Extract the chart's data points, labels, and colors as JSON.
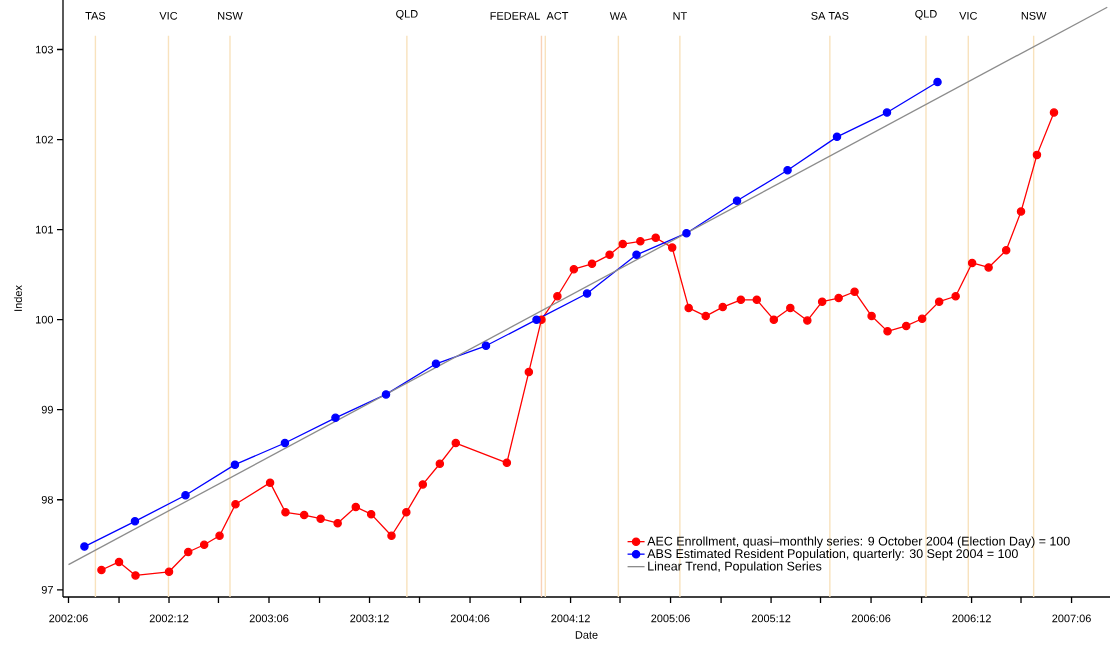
{
  "chart_data": {
    "type": "line",
    "xlabel": "Date",
    "ylabel": "Index",
    "marker": "circle",
    "legend": "bottom right",
    "grid": false,
    "xlim": [
      "2002-05-22",
      "2007-08-10"
    ],
    "ylim": [
      96.92,
      103.55
    ],
    "xticks": [
      {
        "value": "2002-06",
        "label": "2002:06"
      },
      {
        "value": "2002-09",
        "label": null
      },
      {
        "value": "2002-12",
        "label": "2002:12"
      },
      {
        "value": "2003-03",
        "label": null
      },
      {
        "value": "2003-06",
        "label": "2003:06"
      },
      {
        "value": "2003-09",
        "label": null
      },
      {
        "value": "2003-12",
        "label": "2003:12"
      },
      {
        "value": "2004-03",
        "label": null
      },
      {
        "value": "2004-06",
        "label": "2004:06"
      },
      {
        "value": "2004-09",
        "label": null
      },
      {
        "value": "2004-12",
        "label": "2004:12"
      },
      {
        "value": "2005-03",
        "label": null
      },
      {
        "value": "2005-06",
        "label": "2005:06"
      },
      {
        "value": "2005-09",
        "label": null
      },
      {
        "value": "2005-12",
        "label": "2005:12"
      },
      {
        "value": "2006-03",
        "label": null
      },
      {
        "value": "2006-06",
        "label": "2006:06"
      },
      {
        "value": "2006-09",
        "label": null
      },
      {
        "value": "2006-12",
        "label": "2006:12"
      },
      {
        "value": "2007-03",
        "label": null
      },
      {
        "value": "2007-06",
        "label": "2007:06"
      }
    ],
    "yticks": [
      97,
      98,
      99,
      100,
      101,
      102,
      103
    ],
    "ref_lines": [
      {
        "axis": "x",
        "value": "2002-07-20",
        "label": "TAS",
        "color": "#f8e2bd"
      },
      {
        "axis": "x",
        "value": "2002-11-30",
        "label": "VIC",
        "color": "#f8e2bd"
      },
      {
        "axis": "x",
        "value": "2003-03-22",
        "label": "NSW",
        "color": "#f8e2bd"
      },
      {
        "axis": "x",
        "value": "2004-02-07",
        "label": "QLD",
        "color": "#f8e2bd"
      },
      {
        "axis": "x",
        "value": "2004-10-09",
        "label": "FEDERAL",
        "color": "#f8d2b8"
      },
      {
        "axis": "x",
        "value": "2004-10-16",
        "label": "ACT",
        "color": "#f8e2bd"
      },
      {
        "axis": "x",
        "value": "2005-02-26",
        "label": "WA",
        "color": "#f8e2bd"
      },
      {
        "axis": "x",
        "value": "2005-06-18",
        "label": "NT",
        "color": "#f8e2bd"
      },
      {
        "axis": "x",
        "value": "2006-03-18",
        "label": "SA TAS",
        "color": "#f8e2bd"
      },
      {
        "axis": "x",
        "value": "2006-09-09",
        "label": "QLD",
        "color": "#f8e2bd"
      },
      {
        "axis": "x",
        "value": "2006-11-25",
        "label": "VIC",
        "color": "#f8e2bd"
      },
      {
        "axis": "x",
        "value": "2007-03-24",
        "label": "NSW",
        "color": "#f8e2bd"
      }
    ],
    "series": [
      {
        "name": "AEC Enrollment, quasi–monthly series: 9 October 2004 (Election Day) = 100",
        "color": "#ff0000",
        "x": [
          "2002-07-31",
          "2002-09-01",
          "2002-10-01",
          "2002-12-01",
          "2003-01-05",
          "2003-02-03",
          "2003-03-03",
          "2003-04-01",
          "2003-06-03",
          "2003-07-01",
          "2003-08-04",
          "2003-09-03",
          "2003-10-04",
          "2003-11-06",
          "2003-12-04",
          "2004-01-10",
          "2004-02-06",
          "2004-03-07",
          "2004-04-07",
          "2004-05-06",
          "2004-08-07",
          "2004-09-16",
          "2004-10-09",
          "2004-11-07",
          "2004-12-07",
          "2005-01-09",
          "2005-02-10",
          "2005-03-06",
          "2005-04-07",
          "2005-05-05",
          "2005-06-04",
          "2005-07-04",
          "2005-08-04",
          "2005-09-04",
          "2005-10-07",
          "2005-11-05",
          "2005-12-06",
          "2006-01-05",
          "2006-02-05",
          "2006-03-04",
          "2006-04-03",
          "2006-05-02",
          "2006-06-02",
          "2006-07-01",
          "2006-08-04",
          "2006-09-02",
          "2006-10-03",
          "2006-11-02",
          "2006-12-02",
          "2007-01-01",
          "2007-02-02",
          "2007-03-01",
          "2007-03-30",
          "2007-04-30"
        ],
        "values": [
          97.22,
          97.31,
          97.16,
          97.2,
          97.42,
          97.5,
          97.6,
          97.95,
          98.19,
          97.86,
          97.83,
          97.79,
          97.74,
          97.92,
          97.84,
          97.6,
          97.86,
          98.17,
          98.4,
          98.63,
          98.41,
          99.42,
          100.0,
          100.26,
          100.56,
          100.62,
          100.72,
          100.84,
          100.87,
          100.91,
          100.8,
          100.13,
          100.04,
          100.14,
          100.22,
          100.22,
          100.0,
          100.13,
          99.99,
          100.2,
          100.24,
          100.31,
          100.04,
          99.87,
          99.93,
          100.01,
          100.2,
          100.26,
          100.63,
          100.58,
          100.77,
          101.2,
          101.83,
          102.3
        ]
      },
      {
        "name": "ABS Estimated Resident Population, quarterly: 30 Sept 2004 = 100",
        "color": "#0000ff",
        "x": [
          "2002-06-30",
          "2002-09-30",
          "2002-12-31",
          "2003-03-31",
          "2003-06-30",
          "2003-09-30",
          "2003-12-31",
          "2004-03-31",
          "2004-06-30",
          "2004-09-30",
          "2004-12-31",
          "2005-03-31",
          "2005-06-30",
          "2005-09-30",
          "2005-12-31",
          "2006-03-31",
          "2006-06-30",
          "2006-09-30"
        ],
        "values": [
          97.48,
          97.76,
          98.05,
          98.39,
          98.63,
          98.91,
          99.17,
          99.51,
          99.71,
          100.0,
          100.29,
          100.72,
          100.96,
          101.32,
          101.66,
          102.03,
          102.3,
          102.64
        ]
      },
      {
        "name": "Linear Trend, Population Series",
        "type": "line",
        "color": "#8c8c8c",
        "marker": "none",
        "x": [
          "2002-06-01",
          "2007-08-05"
        ],
        "values": [
          97.28,
          103.47
        ]
      }
    ]
  }
}
